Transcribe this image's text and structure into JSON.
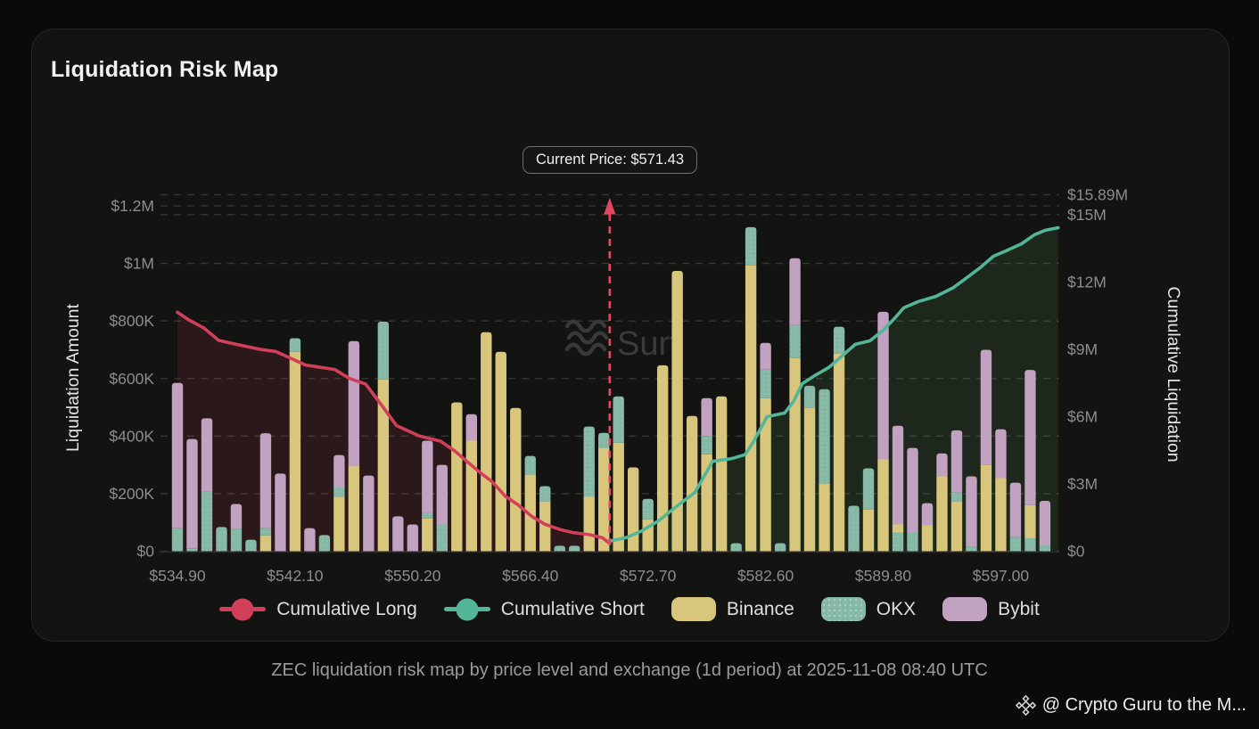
{
  "page": {
    "title": "Liquidation Risk Map",
    "watermark": "Surf",
    "caption": "ZEC liquidation risk map by price level and exchange (1d period) at 2025-11-08 08:40 UTC",
    "footer_credit": "@ Crypto Guru to the M..."
  },
  "current_price": {
    "label": "Current Price: $571.43",
    "value": "$571.43",
    "marker_index": 29.4,
    "marker_color": "#e2495f"
  },
  "axes": {
    "left": {
      "title": "Liquidation Amount",
      "ticks": [
        "$0",
        "$200K",
        "$400K",
        "$600K",
        "$800K",
        "$1M",
        "$1.2M"
      ],
      "tick_values_k": [
        0,
        200,
        400,
        600,
        800,
        1000,
        1200
      ],
      "max_k": 1200
    },
    "right": {
      "title": "Cumulative Liquidation",
      "ticks": [
        "$0",
        "$3M",
        "$6M",
        "$9M",
        "$12M",
        "$15M",
        "$15.89M"
      ],
      "tick_values_m": [
        0,
        3,
        6,
        9,
        12,
        15,
        15.89
      ],
      "max_m": 15.89
    },
    "x": {
      "tick_labels": [
        "$534.90",
        "$542.10",
        "$550.20",
        "$566.40",
        "$572.70",
        "$582.60",
        "$589.80",
        "$597.00"
      ],
      "tick_indices": [
        0,
        8,
        16,
        24,
        32,
        40,
        48,
        56
      ]
    }
  },
  "legend": [
    {
      "label": "Cumulative Long",
      "type": "line",
      "color": "#d23f58"
    },
    {
      "label": "Cumulative Short",
      "type": "line",
      "color": "#53b698"
    },
    {
      "label": "Binance",
      "type": "swatch",
      "color": "#d8c67c"
    },
    {
      "label": "OKX",
      "type": "swatch",
      "color": "#86b8a6"
    },
    {
      "label": "Bybit",
      "type": "swatch",
      "color": "#c1a2c0"
    }
  ],
  "chart_data": {
    "type": "bar",
    "subtype": "stacked bars (liquidation per price level) + two cumulative lines",
    "bar_unit": "thousand USD (left axis)",
    "line_unit": "million USD (right axis)",
    "grid": "dashed horizontal",
    "exchange_colors": {
      "binance": "#d8c67c",
      "okx": "#86b8a6",
      "bybit": "#c1a2c0"
    },
    "area_fill_long": "rgba(210,63,88,0.13)",
    "area_fill_short": "rgba(110,190,95,0.12)",
    "bars": [
      [
        [
          "okx",
          80
        ],
        [
          "bybit",
          505
        ]
      ],
      [
        [
          "okx",
          10
        ],
        [
          "bybit",
          380
        ]
      ],
      [
        [
          "okx",
          207
        ],
        [
          "bybit",
          255
        ]
      ],
      [
        [
          "okx",
          84
        ]
      ],
      [
        [
          "okx",
          77
        ],
        [
          "bybit",
          87
        ]
      ],
      [
        [
          "okx",
          40
        ]
      ],
      [
        [
          "binance",
          55
        ],
        [
          "okx",
          25
        ],
        [
          "bybit",
          330
        ]
      ],
      [
        [
          "bybit",
          270
        ]
      ],
      [
        [
          "binance",
          693
        ],
        [
          "okx",
          47
        ]
      ],
      [
        [
          "bybit",
          80
        ]
      ],
      [
        [
          "okx",
          56
        ]
      ],
      [
        [
          "binance",
          190
        ],
        [
          "okx",
          33
        ],
        [
          "bybit",
          111
        ]
      ],
      [
        [
          "binance",
          297
        ],
        [
          "bybit",
          433
        ]
      ],
      [
        [
          "bybit",
          263
        ]
      ],
      [
        [
          "binance",
          597
        ],
        [
          "okx",
          201
        ]
      ],
      [
        [
          "bybit",
          121
        ]
      ],
      [
        [
          "bybit",
          93
        ]
      ],
      [
        [
          "binance",
          114
        ],
        [
          "okx",
          19
        ],
        [
          "bybit",
          251
        ]
      ],
      [
        [
          "okx",
          93
        ],
        [
          "bybit",
          207
        ]
      ],
      [
        [
          "binance",
          517
        ]
      ],
      [
        [
          "binance",
          384
        ],
        [
          "bybit",
          92
        ]
      ],
      [
        [
          "binance",
          761
        ]
      ],
      [
        [
          "binance",
          693
        ]
      ],
      [
        [
          "binance",
          498
        ]
      ],
      [
        [
          "binance",
          266
        ],
        [
          "okx",
          65
        ]
      ],
      [
        [
          "binance",
          173
        ],
        [
          "okx",
          53
        ]
      ],
      [
        [
          "okx",
          19
        ]
      ],
      [
        [
          "okx",
          19
        ]
      ],
      [
        [
          "binance",
          189
        ],
        [
          "okx",
          244
        ]
      ],
      [
        [
          "binance",
          359
        ],
        [
          "okx",
          52
        ]
      ],
      [
        [
          "binance",
          377
        ],
        [
          "okx",
          161
        ]
      ],
      [
        [
          "binance",
          291
        ]
      ],
      [
        [
          "binance",
          111
        ],
        [
          "okx",
          71
        ]
      ],
      [
        [
          "binance",
          646
        ]
      ],
      [
        [
          "binance",
          974
        ]
      ],
      [
        [
          "binance",
          470
        ]
      ],
      [
        [
          "binance",
          337
        ],
        [
          "okx",
          62
        ],
        [
          "bybit",
          133
        ]
      ],
      [
        [
          "binance",
          538
        ]
      ],
      [
        [
          "okx",
          28
        ]
      ],
      [
        [
          "binance",
          993
        ],
        [
          "okx",
          133
        ]
      ],
      [
        [
          "binance",
          532
        ],
        [
          "okx",
          99
        ],
        [
          "bybit",
          93
        ]
      ],
      [
        [
          "okx",
          28
        ]
      ],
      [
        [
          "binance",
          671
        ],
        [
          "okx",
          115
        ],
        [
          "bybit",
          232
        ]
      ],
      [
        [
          "binance",
          498
        ],
        [
          "okx",
          77
        ]
      ],
      [
        [
          "binance",
          235
        ],
        [
          "okx",
          328
        ]
      ],
      [
        [
          "binance",
          687
        ],
        [
          "okx",
          93
        ]
      ],
      [
        [
          "okx",
          158
        ]
      ],
      [
        [
          "binance",
          145
        ],
        [
          "okx",
          143
        ]
      ],
      [
        [
          "binance",
          319
        ],
        [
          "bybit",
          513
        ]
      ],
      [
        [
          "okx",
          65
        ],
        [
          "binance",
          28
        ],
        [
          "bybit",
          343
        ]
      ],
      [
        [
          "okx",
          65
        ],
        [
          "bybit",
          294
        ]
      ],
      [
        [
          "binance",
          90
        ],
        [
          "bybit",
          77
        ]
      ],
      [
        [
          "binance",
          260
        ],
        [
          "bybit",
          80
        ]
      ],
      [
        [
          "binance",
          173
        ],
        [
          "okx",
          31
        ],
        [
          "bybit",
          216
        ]
      ],
      [
        [
          "okx",
          16
        ],
        [
          "bybit",
          244
        ]
      ],
      [
        [
          "binance",
          300
        ],
        [
          "bybit",
          400
        ]
      ],
      [
        [
          "binance",
          254
        ],
        [
          "bybit",
          170
        ]
      ],
      [
        [
          "okx",
          50
        ],
        [
          "bybit",
          188
        ]
      ],
      [
        [
          "okx",
          45
        ],
        [
          "binance",
          115
        ],
        [
          "bybit",
          470
        ]
      ],
      [
        [
          "okx",
          20
        ],
        [
          "bybit",
          155
        ]
      ]
    ],
    "cumulative_long_m": [
      [
        0,
        10.65
      ],
      [
        0.8,
        10.3
      ],
      [
        1.8,
        9.95
      ],
      [
        2.8,
        9.4
      ],
      [
        3.8,
        9.25
      ],
      [
        5.6,
        9.0
      ],
      [
        6.7,
        8.9
      ],
      [
        7.7,
        8.6
      ],
      [
        8.7,
        8.3
      ],
      [
        10.7,
        8.1
      ],
      [
        11.7,
        7.7
      ],
      [
        12.8,
        7.45
      ],
      [
        13.9,
        6.5
      ],
      [
        14.9,
        5.6
      ],
      [
        16.4,
        5.15
      ],
      [
        17.9,
        4.9
      ],
      [
        18.9,
        4.45
      ],
      [
        19.6,
        4.05
      ],
      [
        20.6,
        3.5
      ],
      [
        21.4,
        3.1
      ],
      [
        22.3,
        2.45
      ],
      [
        23.2,
        2.05
      ],
      [
        24.1,
        1.55
      ],
      [
        25.0,
        1.2
      ],
      [
        26.0,
        0.97
      ],
      [
        26.9,
        0.83
      ],
      [
        28.0,
        0.74
      ],
      [
        28.9,
        0.6
      ],
      [
        29.4,
        0.35
      ]
    ],
    "cumulative_short_m": [
      [
        29.4,
        0.45
      ],
      [
        30.5,
        0.6
      ],
      [
        31.6,
        0.91
      ],
      [
        32.8,
        1.39
      ],
      [
        34.0,
        2.03
      ],
      [
        35.2,
        2.62
      ],
      [
        36.4,
        4.01
      ],
      [
        37.7,
        4.13
      ],
      [
        38.6,
        4.3
      ],
      [
        39.2,
        4.9
      ],
      [
        40.1,
        6.0
      ],
      [
        41.3,
        6.16
      ],
      [
        41.9,
        6.68
      ],
      [
        42.5,
        7.47
      ],
      [
        43.4,
        7.85
      ],
      [
        44.3,
        8.19
      ],
      [
        45.2,
        8.7
      ],
      [
        46.1,
        9.22
      ],
      [
        47.1,
        9.38
      ],
      [
        48.0,
        9.85
      ],
      [
        48.8,
        10.4
      ],
      [
        49.4,
        10.85
      ],
      [
        50.4,
        11.13
      ],
      [
        51.6,
        11.36
      ],
      [
        52.8,
        11.76
      ],
      [
        53.7,
        12.2
      ],
      [
        54.6,
        12.64
      ],
      [
        55.5,
        13.15
      ],
      [
        56.5,
        13.43
      ],
      [
        57.4,
        13.7
      ],
      [
        58.3,
        14.11
      ],
      [
        59.0,
        14.3
      ],
      [
        59.9,
        14.42
      ]
    ]
  }
}
